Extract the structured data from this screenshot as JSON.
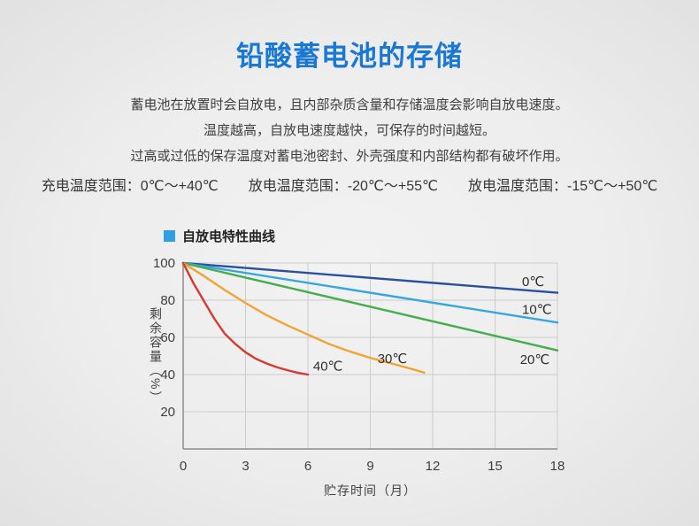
{
  "page": {
    "title": "铅酸蓄电池的存储",
    "description_lines": [
      "蓄电池在放置时会自放电，且内部杂质含量和存储温度会影响自放电速度。",
      "温度越高，自放电速度越快，可保存的时间越短。",
      "过高或过低的保存温度对蓄电池密封、外壳强度和内部结构都有破坏作用。"
    ],
    "temperature_ranges": [
      "充电温度范围：0℃～+40℃",
      "放电温度范围：-20℃～+55℃",
      "放电温度范围：-15℃～+50℃"
    ]
  },
  "legend": {
    "label": "自放电特性曲线",
    "color": "#2e9fe0"
  },
  "chart_data": {
    "type": "line",
    "title": "自放电特性曲线",
    "xlabel": "贮存时间（月）",
    "ylabel": "剩余容量（%）",
    "xlim": [
      0,
      18
    ],
    "ylim": [
      0,
      100
    ],
    "xticks": [
      0,
      3,
      6,
      9,
      12,
      15,
      18
    ],
    "yticks": [
      20,
      40,
      60,
      80,
      100
    ],
    "grid": true,
    "legend_position": "top-left",
    "series": [
      {
        "name": "0℃",
        "color": "#2a4f9e",
        "points": [
          [
            0,
            100
          ],
          [
            18,
            84
          ]
        ],
        "label_pos": [
          16.3,
          90
        ]
      },
      {
        "name": "10℃",
        "color": "#36a6de",
        "points": [
          [
            0,
            100
          ],
          [
            18,
            68
          ]
        ],
        "label_pos": [
          16.3,
          75
        ]
      },
      {
        "name": "20℃",
        "color": "#44ad4c",
        "points": [
          [
            0,
            100
          ],
          [
            18,
            53
          ]
        ],
        "label_pos": [
          16.2,
          48
        ]
      },
      {
        "name": "30℃",
        "color": "#f0a432",
        "points": [
          [
            0,
            100
          ],
          [
            1,
            93
          ],
          [
            2,
            85.5
          ],
          [
            3,
            78.5
          ],
          [
            4,
            72
          ],
          [
            5,
            66.5
          ],
          [
            6,
            61.5
          ],
          [
            7,
            56.5
          ],
          [
            8,
            52.5
          ],
          [
            9,
            49
          ],
          [
            10,
            46
          ],
          [
            11,
            43
          ],
          [
            11.6,
            41
          ]
        ],
        "label_pos": [
          9.35,
          48.5
        ]
      },
      {
        "name": "40℃",
        "color": "#d53a2f",
        "points": [
          [
            0,
            100
          ],
          [
            0.5,
            89
          ],
          [
            1,
            79.5
          ],
          [
            1.5,
            70
          ],
          [
            2,
            62
          ],
          [
            2.5,
            56.5
          ],
          [
            3,
            52
          ],
          [
            3.5,
            48.5
          ],
          [
            4,
            46
          ],
          [
            4.5,
            44
          ],
          [
            5,
            42.4
          ],
          [
            5.5,
            41
          ],
          [
            6,
            40
          ]
        ],
        "label_pos": [
          6.25,
          44.5
        ]
      }
    ]
  }
}
